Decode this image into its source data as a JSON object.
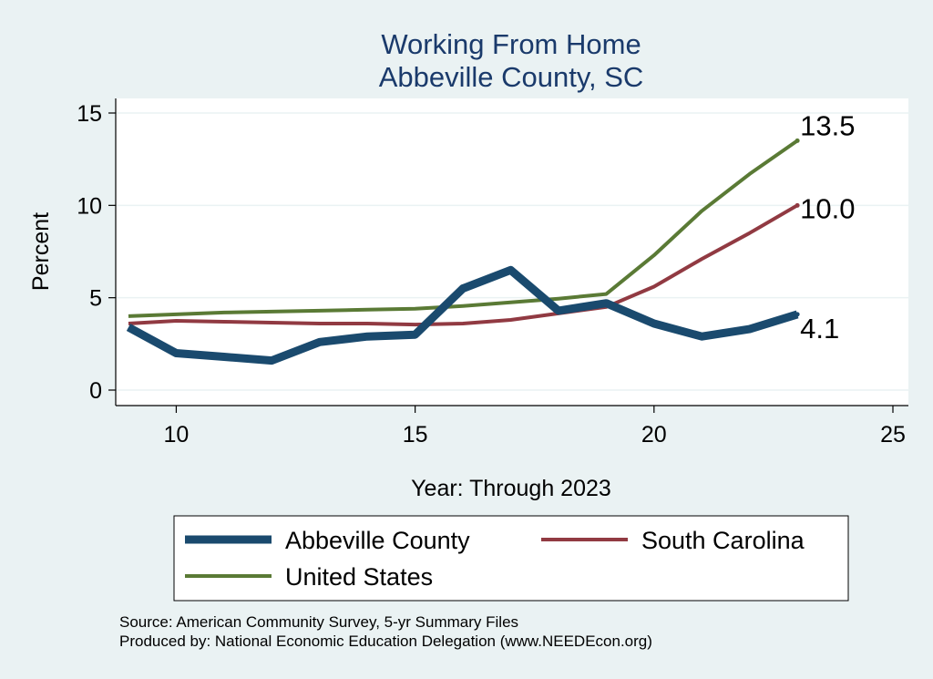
{
  "chart_data": {
    "type": "line",
    "title": [
      "Working From Home",
      "Abbeville County, SC"
    ],
    "xlabel": "Year: Through 2023",
    "ylabel": "Percent",
    "xlim": [
      9,
      25
    ],
    "ylim": [
      0,
      15
    ],
    "xticks": [
      10,
      15,
      20,
      25
    ],
    "yticks": [
      0,
      5,
      10,
      15
    ],
    "grid": true,
    "legend_position": "bottom",
    "x": [
      9,
      10,
      11,
      12,
      13,
      14,
      15,
      16,
      17,
      18,
      19,
      20,
      21,
      22,
      23
    ],
    "series": [
      {
        "name": "Abbeville County",
        "color": "#1a4a6e",
        "values": [
          3.4,
          2.0,
          1.8,
          1.6,
          2.6,
          2.9,
          3.0,
          5.5,
          6.5,
          4.3,
          4.7,
          3.6,
          2.9,
          3.3,
          4.1
        ],
        "end_label": "4.1"
      },
      {
        "name": "South Carolina",
        "color": "#913a42",
        "values": [
          3.6,
          3.75,
          3.7,
          3.65,
          3.6,
          3.6,
          3.55,
          3.6,
          3.8,
          4.15,
          4.5,
          5.6,
          7.1,
          8.5,
          10.0
        ],
        "end_label": "10.0"
      },
      {
        "name": "United States",
        "color": "#5a7a35",
        "values": [
          4.0,
          4.1,
          4.2,
          4.25,
          4.3,
          4.35,
          4.4,
          4.55,
          4.75,
          4.95,
          5.2,
          7.3,
          9.7,
          11.7,
          13.5
        ],
        "end_label": "13.5"
      }
    ]
  },
  "footer": {
    "source": "Source: American Community Survey, 5-yr Summary Files",
    "producer": "Produced by: National Economic Education Delegation (www.NEEDEcon.org)"
  }
}
